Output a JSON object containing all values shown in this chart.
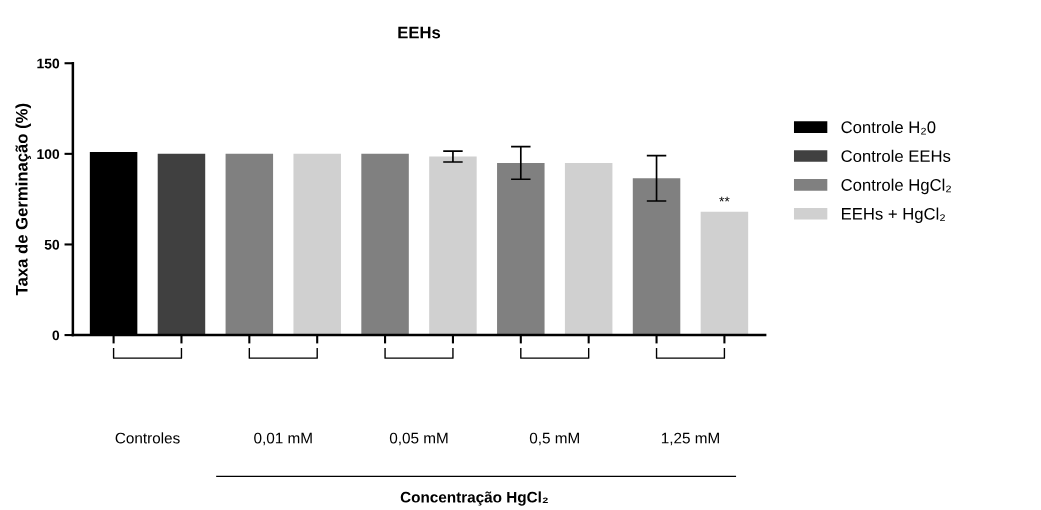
{
  "chart_data": {
    "type": "bar",
    "title": "EEHs",
    "ylabel": "Taxa de Germinação (%)",
    "xlabel": "Concentração HgCl₂",
    "categories": [
      "Controles",
      "0,01 mM",
      "0,05 mM",
      "0,5 mM",
      "1,25 mM"
    ],
    "series": [
      {
        "name": "Controle H₂0",
        "color": "#000000",
        "values": [
          101,
          null,
          null,
          null,
          null
        ]
      },
      {
        "name": "Controle EEHs",
        "color": "#404040",
        "values": [
          100,
          null,
          null,
          null,
          null
        ]
      },
      {
        "name": "Controle HgCl₂",
        "color": "#808080",
        "values": [
          null,
          100,
          100,
          95,
          86.5
        ],
        "errors": [
          null,
          null,
          null,
          9,
          12.5
        ]
      },
      {
        "name": "EEHs + HgCl₂",
        "color": "#d0d0d0",
        "values": [
          null,
          100,
          98.5,
          95,
          68
        ],
        "errors": [
          null,
          null,
          3,
          null,
          null
        ]
      }
    ],
    "ylim": [
      0,
      150
    ],
    "yticks": [
      0,
      50,
      100,
      150
    ],
    "grid": false,
    "legend": "right",
    "annotations": [
      "**"
    ]
  }
}
